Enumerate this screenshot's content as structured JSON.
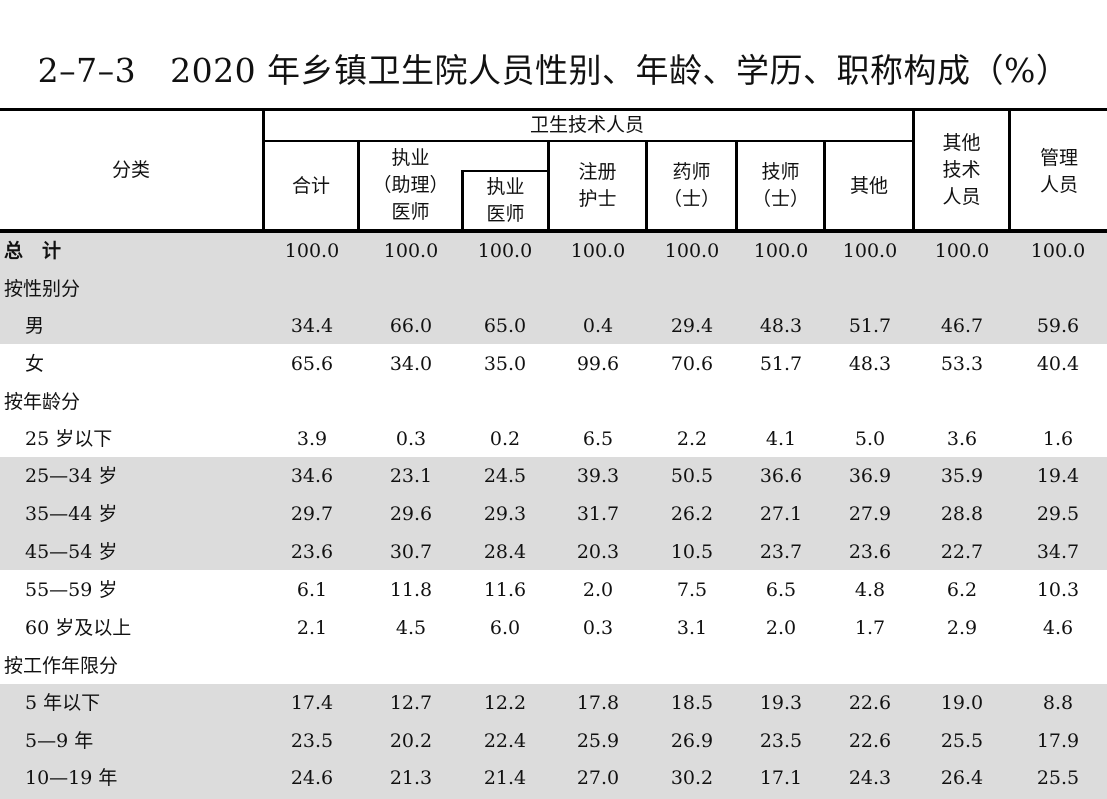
{
  "title": {
    "code": "2–7–3",
    "text": "2020 年乡镇卫生院人员性别、年龄、学历、职称构成（%）"
  },
  "header": {
    "category": "分类",
    "health_tech": "卫生技术人员",
    "total": "合计",
    "practicing_assistant_1": "执业",
    "practicing_assistant_2": "（助理）",
    "practicing_assistant_3": "医师",
    "practicing_1": "执业",
    "practicing_2": "医师",
    "nurse_1": "注册",
    "nurse_2": "护士",
    "pharmacist_1": "药师",
    "pharmacist_2": "（士）",
    "technician_1": "技师",
    "technician_2": "（士）",
    "other": "其他",
    "other_tech_1": "其他",
    "other_tech_2": "技术",
    "other_tech_3": "人员",
    "mgmt_1": "管理",
    "mgmt_2": "人员"
  },
  "rows": [
    {
      "label": "总　计",
      "values": [
        "100.0",
        "100.0",
        "100.0",
        "100.0",
        "100.0",
        "100.0",
        "100.0",
        "100.0",
        "100.0"
      ]
    },
    {
      "label": "按性别分",
      "values": [
        "",
        "",
        "",
        "",
        "",
        "",
        "",
        "",
        ""
      ]
    },
    {
      "label": "男",
      "values": [
        "34.4",
        "66.0",
        "65.0",
        "0.4",
        "29.4",
        "48.3",
        "51.7",
        "46.7",
        "59.6"
      ]
    },
    {
      "label": "女",
      "values": [
        "65.6",
        "34.0",
        "35.0",
        "99.6",
        "70.6",
        "51.7",
        "48.3",
        "53.3",
        "40.4"
      ]
    },
    {
      "label": "按年龄分",
      "values": [
        "",
        "",
        "",
        "",
        "",
        "",
        "",
        "",
        ""
      ]
    },
    {
      "label": "25 岁以下",
      "values": [
        "3.9",
        "0.3",
        "0.2",
        "6.5",
        "2.2",
        "4.1",
        "5.0",
        "3.6",
        "1.6"
      ]
    },
    {
      "label": "25—34 岁",
      "values": [
        "34.6",
        "23.1",
        "24.5",
        "39.3",
        "50.5",
        "36.6",
        "36.9",
        "35.9",
        "19.4"
      ]
    },
    {
      "label": "35—44 岁",
      "values": [
        "29.7",
        "29.6",
        "29.3",
        "31.7",
        "26.2",
        "27.1",
        "27.9",
        "28.8",
        "29.5"
      ]
    },
    {
      "label": "45—54 岁",
      "values": [
        "23.6",
        "30.7",
        "28.4",
        "20.3",
        "10.5",
        "23.7",
        "23.6",
        "22.7",
        "34.7"
      ]
    },
    {
      "label": "55—59 岁",
      "values": [
        "6.1",
        "11.8",
        "11.6",
        "2.0",
        "7.5",
        "6.5",
        "4.8",
        "6.2",
        "10.3"
      ]
    },
    {
      "label": "60 岁及以上",
      "values": [
        "2.1",
        "4.5",
        "6.0",
        "0.3",
        "3.1",
        "2.0",
        "1.7",
        "2.9",
        "4.6"
      ]
    },
    {
      "label": "按工作年限分",
      "values": [
        "",
        "",
        "",
        "",
        "",
        "",
        "",
        "",
        ""
      ]
    },
    {
      "label": "5 年以下",
      "values": [
        "17.4",
        "12.7",
        "12.2",
        "17.8",
        "18.5",
        "19.3",
        "22.6",
        "19.0",
        "8.8"
      ]
    },
    {
      "label": "5—9 年",
      "values": [
        "23.5",
        "20.2",
        "22.4",
        "25.9",
        "26.9",
        "23.5",
        "22.6",
        "25.5",
        "17.9"
      ]
    },
    {
      "label": "10—19 年",
      "values": [
        "24.6",
        "21.3",
        "21.4",
        "27.0",
        "30.2",
        "17.1",
        "24.3",
        "26.4",
        "25.5"
      ]
    }
  ]
}
